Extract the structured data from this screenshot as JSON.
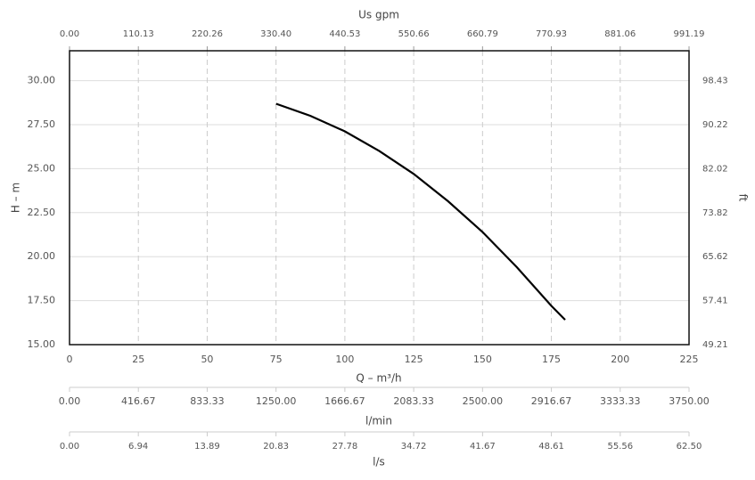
{
  "chart_data": {
    "type": "line",
    "x": [
      75,
      87.5,
      100,
      112.5,
      125,
      137.5,
      150,
      162.5,
      175,
      180
    ],
    "series": [
      {
        "name": "H",
        "color": "#000000",
        "values": [
          28.69,
          28.0,
          27.12,
          26.0,
          24.7,
          23.15,
          21.4,
          19.4,
          17.2,
          16.41
        ]
      }
    ],
    "xlabel": "Q – m³/h",
    "xlim": [
      0,
      225
    ],
    "xticks": [
      0,
      25,
      50,
      75,
      100,
      125,
      150,
      175,
      200,
      225
    ],
    "ylabel": "H – m",
    "ylim": [
      15,
      31.7
    ],
    "yticks": [
      {
        "value": 15,
        "label": "15.00"
      },
      {
        "value": 17.5,
        "label": "17.50"
      },
      {
        "value": 20,
        "label": "20.00"
      },
      {
        "value": 22.5,
        "label": "22.50"
      },
      {
        "value": 25,
        "label": "25.00"
      },
      {
        "value": 27.5,
        "label": "27.50"
      },
      {
        "value": 30,
        "label": "30.00"
      }
    ],
    "y2label": "ft",
    "y2lim": [
      49.21,
      104.0
    ],
    "y2ticks": [
      49.21,
      57.41,
      65.62,
      73.82,
      82.02,
      90.22,
      98.43
    ],
    "top_axis": {
      "label": "Us gpm",
      "xlim": [
        0,
        991.19
      ],
      "xticks": [
        {
          "value": 0,
          "label": "0.00"
        },
        110.13,
        220.26,
        {
          "value": 330.4,
          "label": "330.40"
        },
        440.53,
        550.66,
        660.79,
        770.93,
        881.06,
        991.19
      ]
    },
    "bottom_axes": [
      {
        "label": "l/min",
        "xlim": [
          0,
          3750
        ],
        "xticks": [
          {
            "value": 0,
            "label": "0.00"
          },
          416.67,
          833.33,
          {
            "value": 1250,
            "label": "1250.00"
          },
          1666.67,
          2083.33,
          {
            "value": 2500,
            "label": "2500.00"
          },
          2916.67,
          3333.33,
          {
            "value": 3750,
            "label": "3750.00"
          }
        ]
      },
      {
        "label": "l/s",
        "xlim": [
          0,
          62.5
        ],
        "xticks": [
          {
            "value": 0,
            "label": "0.00"
          },
          6.94,
          13.89,
          20.83,
          27.78,
          34.72,
          41.67,
          48.61,
          55.56,
          {
            "value": 62.5,
            "label": "62.50"
          }
        ]
      }
    ],
    "grid": true
  }
}
